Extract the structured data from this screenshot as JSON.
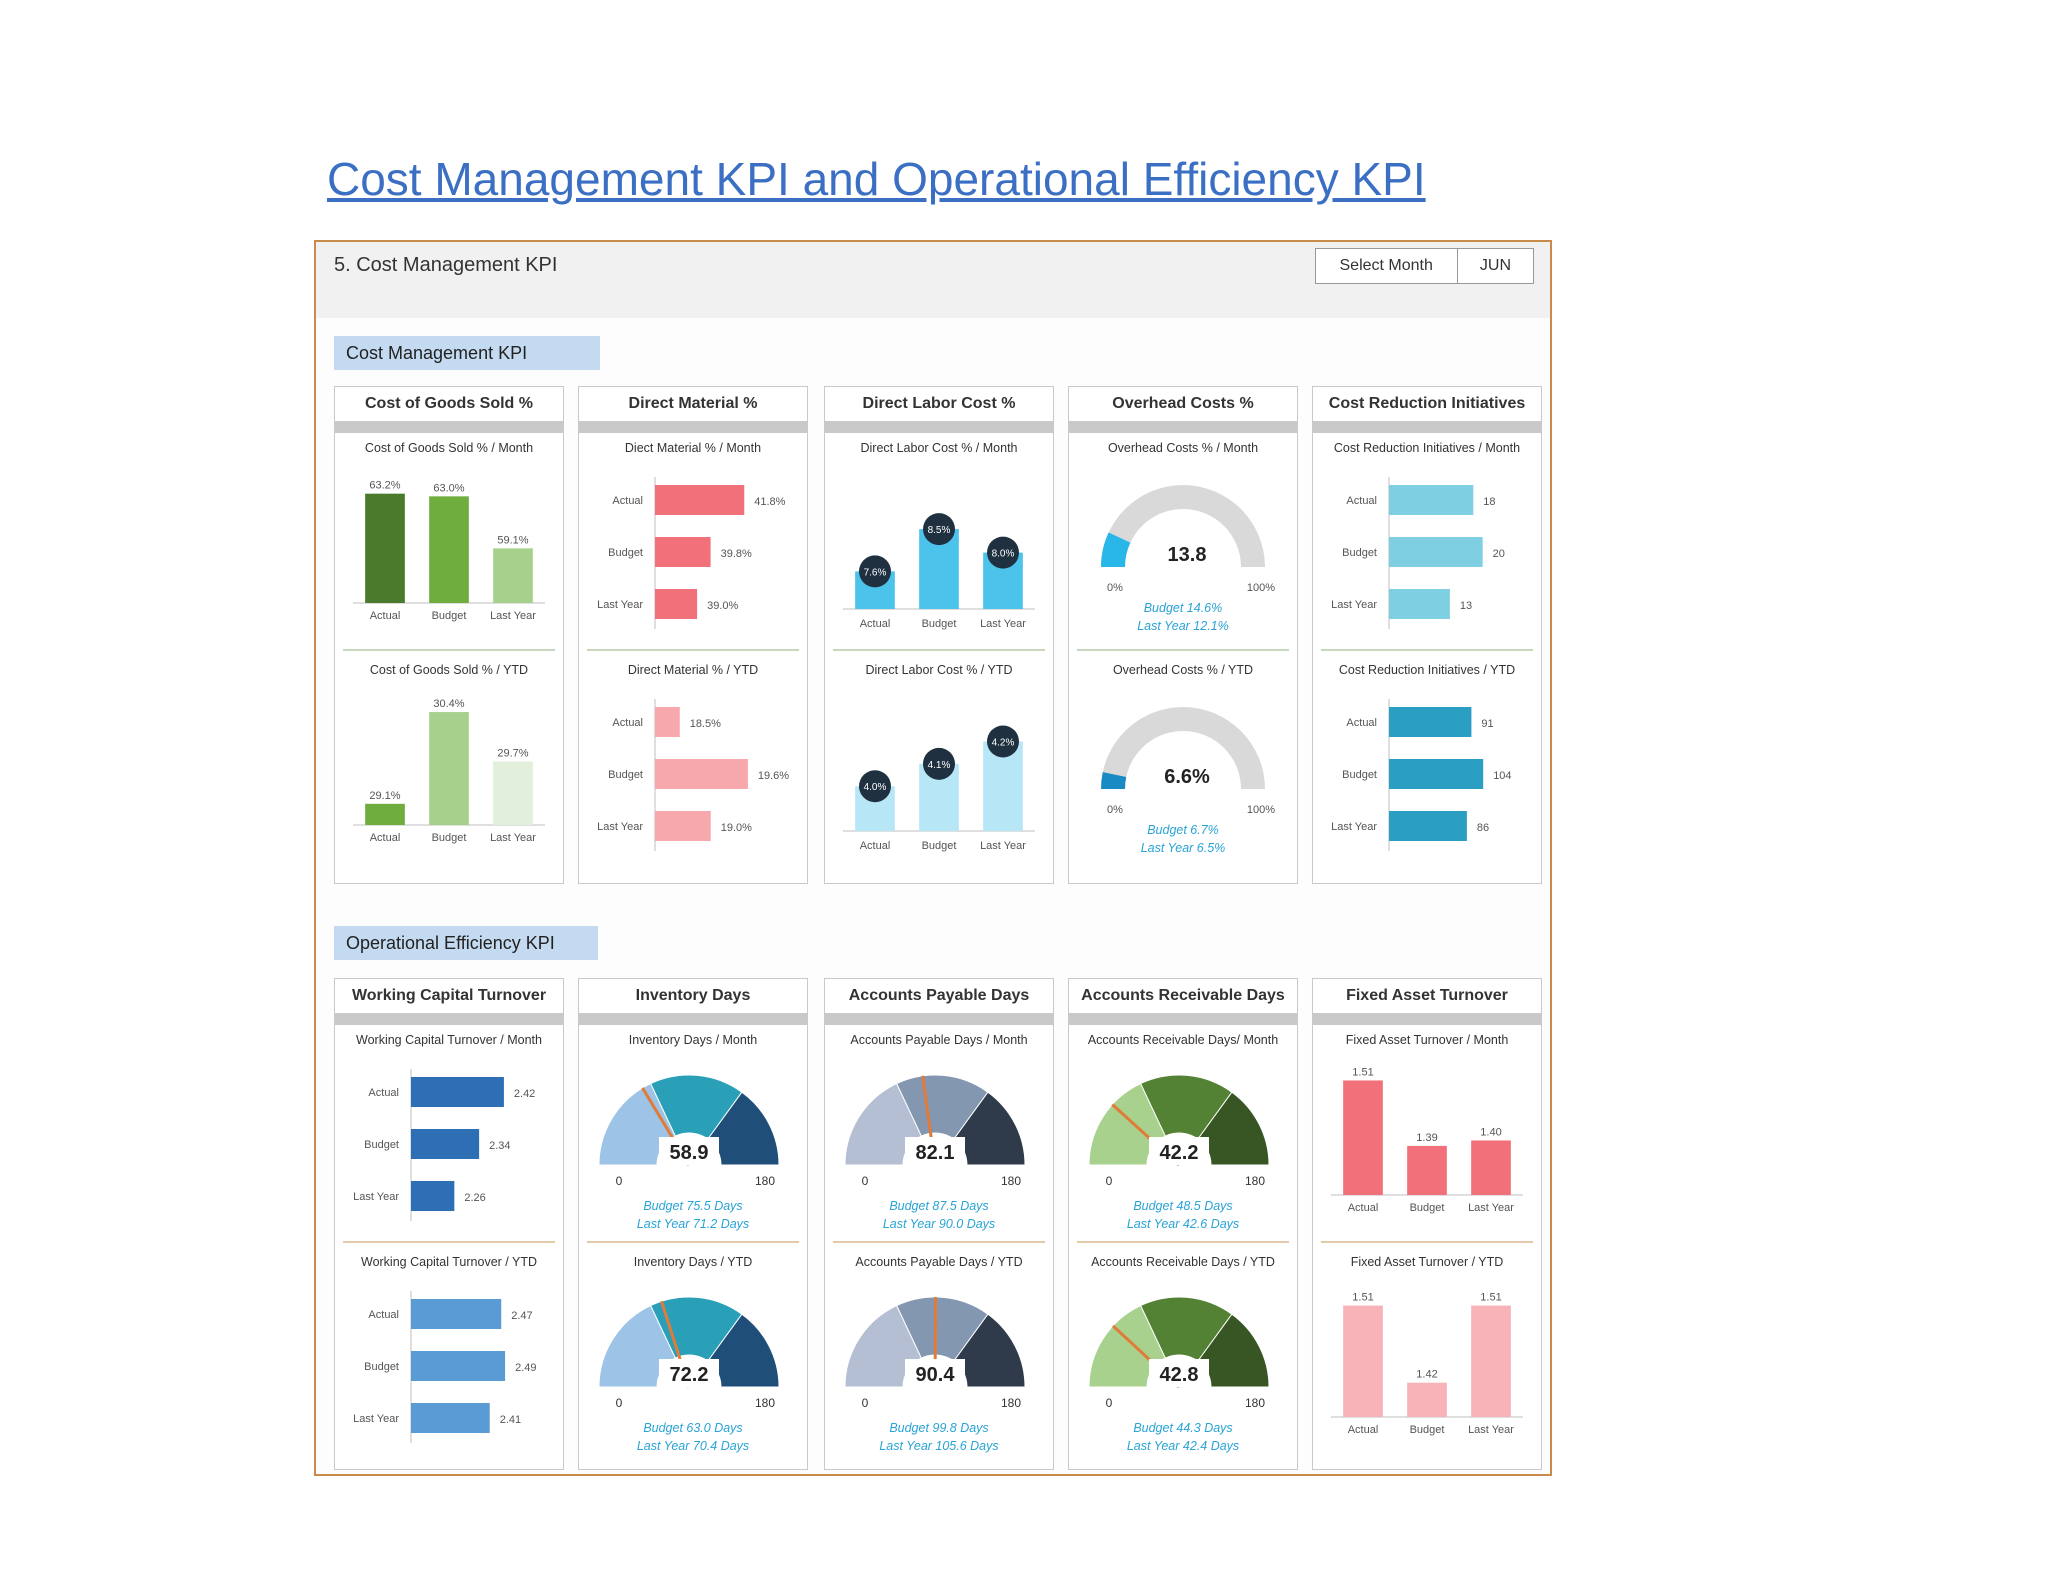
{
  "page": {
    "title": "Cost Management KPI and Operational Efficiency KPI"
  },
  "dashboard": {
    "title": "5. Cost Management KPI",
    "select_label": "Select Month",
    "select_value": "JUN",
    "section_cost": "Cost Management KPI",
    "section_ops": "Operational Efficiency KPI"
  },
  "colors": {
    "title_blue": "#3b6fc4",
    "frame": "#c98a4a",
    "section_bg": "#c4daf0",
    "note_blue": "#29a3d6",
    "gauge_grey": "#d9d9d9",
    "gauge_fill": "#29b6e8",
    "gauge_fill_ytd": "#1a8ac2"
  },
  "panels": [
    {
      "title": "Cost of Goods Sold %",
      "charts": [
        {
          "chart_data": {
            "type": "bar",
            "title": "Cost of Goods Sold % / Month",
            "categories": [
              "Actual",
              "Budget",
              "Last Year"
            ],
            "values": [
              63.2,
              63.0,
              59.1
            ],
            "labels": [
              "63.2%",
              "63.0%",
              "59.1%"
            ],
            "ylim": [
              55,
              64
            ],
            "colors": [
              "#4a7a2c",
              "#6fae3e",
              "#a8d08d"
            ]
          }
        },
        {
          "chart_data": {
            "type": "bar",
            "title": "Cost of Goods Sold % / YTD",
            "categories": [
              "Actual",
              "Budget",
              "Last Year"
            ],
            "values": [
              29.1,
              30.4,
              29.7
            ],
            "labels": [
              "29.1%",
              "30.4%",
              "29.7%"
            ],
            "ylim": [
              28.8,
              30.5
            ],
            "colors": [
              "#6fae3e",
              "#a8d08d",
              "#e2efda"
            ]
          }
        }
      ]
    },
    {
      "title": "Direct Material %",
      "charts": [
        {
          "chart_data": {
            "type": "hbar",
            "title": "Diect Material % / Month",
            "categories": [
              "Actual",
              "Budget",
              "Last Year"
            ],
            "values": [
              41.8,
              39.8,
              39.0
            ],
            "labels": [
              "41.8%",
              "39.8%",
              "39.0%"
            ],
            "xlim": [
              36.5,
              42.2
            ],
            "colors": [
              "#f2707a",
              "#f2707a",
              "#f2707a"
            ]
          }
        },
        {
          "chart_data": {
            "type": "hbar",
            "title": "Direct Material % / YTD",
            "categories": [
              "Actual",
              "Budget",
              "Last Year"
            ],
            "values": [
              18.5,
              19.6,
              19.0
            ],
            "labels": [
              "18.5%",
              "19.6%",
              "19.0%"
            ],
            "xlim": [
              18.1,
              19.65
            ],
            "colors": [
              "#f7a8ad",
              "#f7a8ad",
              "#f7a8ad"
            ]
          }
        }
      ]
    },
    {
      "title": "Direct Labor Cost %",
      "charts": [
        {
          "chart_data": {
            "type": "lollipop",
            "title": "Direct Labor Cost % / Month",
            "categories": [
              "Actual",
              "Budget",
              "Last Year"
            ],
            "values": [
              7.6,
              8.5,
              8.0
            ],
            "labels": [
              "7.6%",
              "8.5%",
              "8.0%"
            ],
            "ylim": [
              6.8,
              8.8
            ],
            "colors": [
              "#4cc3ea",
              "#4cc3ea",
              "#4cc3ea"
            ]
          }
        },
        {
          "chart_data": {
            "type": "lollipop",
            "title": "Direct Labor Cost % / YTD",
            "categories": [
              "Actual",
              "Budget",
              "Last Year"
            ],
            "values": [
              4.0,
              4.1,
              4.2
            ],
            "labels": [
              "4.0%",
              "4.1%",
              "4.2%"
            ],
            "ylim": [
              3.8,
              4.22
            ],
            "colors": [
              "#b7e6f7",
              "#b7e6f7",
              "#b7e6f7"
            ]
          }
        }
      ]
    },
    {
      "title": "Overhead Costs %",
      "charts": [
        {
          "chart_data": {
            "type": "gauge",
            "title": "Overhead Costs % / Month",
            "value": 13.8,
            "min_label": "0%",
            "max_label": "100%",
            "fraction": 0.138,
            "value_label": "13.8",
            "notes": [
              "Budget 14.6%",
              "Last Year 12.1%"
            ]
          }
        },
        {
          "chart_data": {
            "type": "gauge",
            "title": "Overhead Costs % / YTD",
            "value": 6.6,
            "min_label": "0%",
            "max_label": "100%",
            "fraction": 0.066,
            "value_label": "6.6%",
            "notes": [
              "Budget 6.7%",
              "Last Year 6.5%"
            ]
          }
        }
      ]
    },
    {
      "title": "Cost Reduction Initiatives",
      "charts": [
        {
          "chart_data": {
            "type": "hbar",
            "title": "Cost Reduction Initiatives / Month",
            "categories": [
              "Actual",
              "Budget",
              "Last Year"
            ],
            "values": [
              18,
              20,
              13
            ],
            "labels": [
              "18",
              "20",
              "13"
            ],
            "xlim": [
              0,
              20.5
            ],
            "colors": [
              "#7fcfe3",
              "#7fcfe3",
              "#7fcfe3"
            ]
          }
        },
        {
          "chart_data": {
            "type": "hbar",
            "title": "Cost Reduction Initiatives / YTD",
            "categories": [
              "Actual",
              "Budget",
              "Last Year"
            ],
            "values": [
              91,
              104,
              86
            ],
            "labels": [
              "91",
              "104",
              "86"
            ],
            "xlim": [
              0,
              106
            ],
            "colors": [
              "#2a9fc1",
              "#2a9fc1",
              "#2a9fc1"
            ]
          }
        }
      ]
    },
    {
      "title": "Working Capital Turnover",
      "charts": [
        {
          "chart_data": {
            "type": "hbar",
            "title": "Working Capital Turnover / Month",
            "categories": [
              "Actual",
              "Budget",
              "Last Year"
            ],
            "values": [
              2.42,
              2.34,
              2.26
            ],
            "labels": [
              "2.42",
              "2.34",
              "2.26"
            ],
            "xlim": [
              2.12,
              2.43
            ],
            "colors": [
              "#2e6eb5",
              "#2e6eb5",
              "#2e6eb5"
            ]
          }
        },
        {
          "chart_data": {
            "type": "hbar",
            "title": "Working Capital Turnover / YTD",
            "categories": [
              "Actual",
              "Budget",
              "Last Year"
            ],
            "values": [
              2.47,
              2.49,
              2.41
            ],
            "labels": [
              "2.47",
              "2.49",
              "2.41"
            ],
            "xlim": [
              2.0,
              2.5
            ],
            "colors": [
              "#5b9bd5",
              "#5b9bd5",
              "#5b9bd5"
            ]
          }
        }
      ]
    },
    {
      "title": "Inventory Days",
      "charts": [
        {
          "chart_data": {
            "type": "band_gauge",
            "title": "Inventory Days / Month",
            "value": 58.9,
            "min_label": "0",
            "max_label": "180",
            "max": 180,
            "value_label": "58.9",
            "notes": [
              "Budget 75.5 Days",
              "Last Year 71.2 Days"
            ],
            "bands": [
              "#9dc3e6",
              "#2aa0b8",
              "#1f4e79"
            ]
          }
        },
        {
          "chart_data": {
            "type": "band_gauge",
            "title": "Inventory Days / YTD",
            "value": 72.2,
            "min_label": "0",
            "max_label": "180",
            "max": 180,
            "value_label": "72.2",
            "notes": [
              "Budget 63.0 Days",
              "Last Year 70.4 Days"
            ],
            "bands": [
              "#9dc3e6",
              "#2aa0b8",
              "#1f4e79"
            ]
          }
        }
      ]
    },
    {
      "title": "Accounts Payable Days",
      "charts": [
        {
          "chart_data": {
            "type": "band_gauge",
            "title": "Accounts Payable Days / Month",
            "value": 82.1,
            "min_label": "0",
            "max_label": "180",
            "max": 180,
            "value_label": "82.1",
            "notes": [
              "Budget 87.5 Days",
              "Last Year 90.0 Days"
            ],
            "bands": [
              "#b4bfd3",
              "#8497b0",
              "#2f3a4a"
            ]
          }
        },
        {
          "chart_data": {
            "type": "band_gauge",
            "title": "Accounts Payable Days / YTD",
            "value": 90.4,
            "min_label": "0",
            "max_label": "180",
            "max": 180,
            "value_label": "90.4",
            "notes": [
              "Budget 99.8 Days",
              "Last Year 105.6 Days"
            ],
            "bands": [
              "#b4bfd3",
              "#8497b0",
              "#2f3a4a"
            ]
          }
        }
      ]
    },
    {
      "title": "Accounts Receivable Days",
      "charts": [
        {
          "chart_data": {
            "type": "band_gauge",
            "title": "Accounts Receivable Days/ Month",
            "value": 42.2,
            "min_label": "0",
            "max_label": "180",
            "max": 180,
            "value_label": "42.2",
            "notes": [
              "Budget 48.5 Days",
              "Last Year 42.6 Days"
            ],
            "bands": [
              "#a9d18e",
              "#548235",
              "#375623"
            ]
          }
        },
        {
          "chart_data": {
            "type": "band_gauge",
            "title": "Accounts Receivable Days / YTD",
            "value": 42.8,
            "min_label": "0",
            "max_label": "180",
            "max": 180,
            "value_label": "42.8",
            "notes": [
              "Budget 44.3 Days",
              "Last Year 42.4 Days"
            ],
            "bands": [
              "#a9d18e",
              "#548235",
              "#375623"
            ]
          }
        }
      ]
    },
    {
      "title": "Fixed Asset Turnover",
      "charts": [
        {
          "chart_data": {
            "type": "bar",
            "title": "Fixed Asset Turnover / Month",
            "categories": [
              "Actual",
              "Budget",
              "Last Year"
            ],
            "values": [
              1.51,
              1.39,
              1.4
            ],
            "labels": [
              "1.51",
              "1.39",
              "1.40"
            ],
            "ylim": [
              1.3,
              1.52
            ],
            "colors": [
              "#f2707a",
              "#f2707a",
              "#f2707a"
            ]
          }
        },
        {
          "chart_data": {
            "type": "bar",
            "title": "Fixed Asset Turnover / YTD",
            "categories": [
              "Actual",
              "Budget",
              "Last Year"
            ],
            "values": [
              1.51,
              1.42,
              1.51
            ],
            "labels": [
              "1.51",
              "1.42",
              "1.51"
            ],
            "ylim": [
              1.38,
              1.52
            ],
            "colors": [
              "#f7b3b8",
              "#f7b3b8",
              "#f7b3b8"
            ]
          }
        }
      ]
    }
  ]
}
